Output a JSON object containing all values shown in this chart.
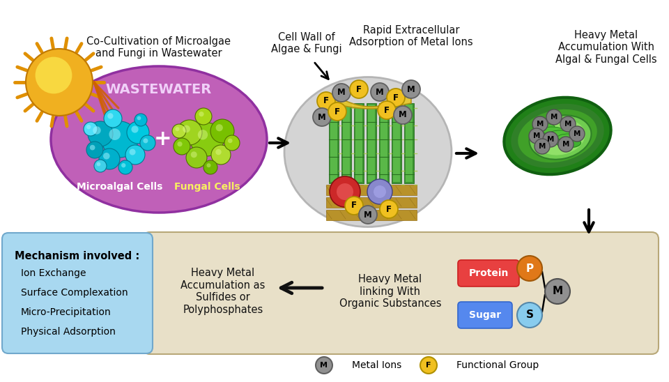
{
  "bg_color": "#ffffff",
  "title_text": "Co-Cultivation of Microalgae\nand Fungi in Wastewater",
  "wastewater_color": "#c060b8",
  "wastewater_label": "WASTEWATER",
  "microalgal_label": "Microalgal Cells",
  "fungal_label": "Fungal Cells",
  "cell_wall_label": "Cell Wall of\nAlgae & Fungi",
  "rapid_adsorption_label": "Rapid Extracellular\nAdsorption of Metal Ions",
  "heavy_metal_accum_label": "Heavy Metal\nAccumulation With\nAlgal & Fungal Cells",
  "mechanism_title": "Mechanism involved :",
  "mechanisms": [
    "Ion Exchange",
    "Surface Complexation",
    "Micro-Precipitation",
    "Physical Adsorption"
  ],
  "mechanism_bg": "#a8d8f0",
  "bottom_box_bg": "#e8e0c8",
  "heavy_metal_sulfides": "Heavy Metal\nAccumulation as\nSulfides or\nPolyphosphates",
  "heavy_metal_linking": "Heavy Metal\nlinking With\nOrganic Substances",
  "protein_label": "Protein",
  "sugar_label": "Sugar",
  "protein_color": "#e84040",
  "sugar_color": "#5588ee",
  "P_color": "#e07818",
  "S_color": "#88ccee",
  "M_color": "#909090",
  "metal_ions_label": "Metal Ions",
  "functional_group_label": "Functional Group",
  "F_color": "#f0c020",
  "sun_body_color": "#f0b020",
  "sun_inner_color": "#f8d840",
  "sun_ray_color": "#e09000",
  "algal_colors": [
    "#00b8d0",
    "#00a8c0",
    "#00c8e0",
    "#00b0cc",
    "#20d0e8",
    "#00a0b8",
    "#10c0d8",
    "#30d8f0",
    "#00c0d8",
    "#50e0f8",
    "#00b8d8",
    "#40d0e8"
  ],
  "fungal_colors": [
    "#88cc10",
    "#a0d420",
    "#78c000",
    "#90cc18",
    "#b0dc30",
    "#80c808",
    "#98d010",
    "#a8d818",
    "#70b800",
    "#b8e038"
  ],
  "cell_wall_bg": "#c8c8c8",
  "green_cell_outer": "#208018",
  "green_cell_mid": "#40a028",
  "green_cell_inner": "#60c040"
}
